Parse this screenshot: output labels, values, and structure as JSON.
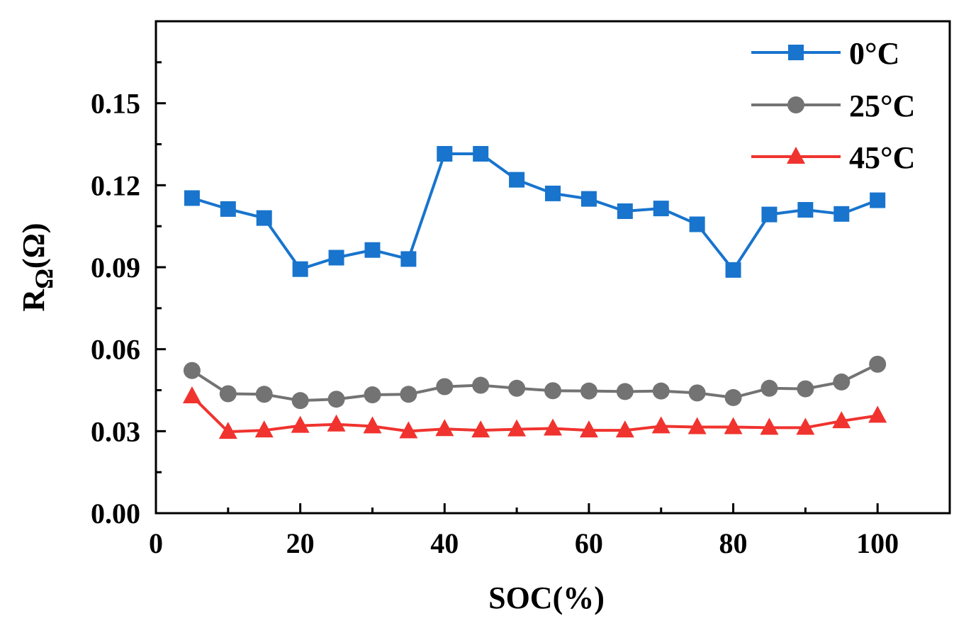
{
  "chart_data": {
    "type": "line",
    "title": "",
    "xlabel": "SOC(%)",
    "ylabel": {
      "main": "R",
      "subscript": "Ω",
      "suffix": "(Ω)"
    },
    "xlim": [
      0,
      110
    ],
    "ylim": [
      0,
      0.18
    ],
    "x_ticks": [
      0,
      20,
      40,
      60,
      80,
      100
    ],
    "x_tick_labels": [
      "0",
      "20",
      "40",
      "60",
      "80",
      "100"
    ],
    "y_ticks": [
      0,
      0.03,
      0.06,
      0.09,
      0.12,
      0.15
    ],
    "y_tick_labels": [
      "0.00",
      "0.03",
      "0.06",
      "0.09",
      "0.12",
      "0.15"
    ],
    "grid": false,
    "legend_position": "top-right",
    "x": [
      5,
      10,
      15,
      20,
      25,
      30,
      35,
      40,
      45,
      50,
      55,
      60,
      65,
      70,
      75,
      80,
      85,
      90,
      95,
      100
    ],
    "series": [
      {
        "name": "0°C",
        "color": "#1874CD",
        "marker": "square",
        "values": [
          0.1153,
          0.1113,
          0.108,
          0.0893,
          0.0935,
          0.0963,
          0.093,
          0.1315,
          0.1315,
          0.122,
          0.117,
          0.115,
          0.1105,
          0.1115,
          0.1057,
          0.089,
          0.1093,
          0.111,
          0.1095,
          0.1145
        ]
      },
      {
        "name": "25°C",
        "color": "#737373",
        "marker": "circle",
        "values": [
          0.0522,
          0.0437,
          0.0435,
          0.0412,
          0.0417,
          0.0433,
          0.0435,
          0.0463,
          0.0468,
          0.0457,
          0.0448,
          0.0447,
          0.0445,
          0.0447,
          0.044,
          0.0423,
          0.0457,
          0.0455,
          0.048,
          0.0545
        ]
      },
      {
        "name": "45°C",
        "color": "#F0332E",
        "marker": "triangle",
        "values": [
          0.0428,
          0.0298,
          0.0303,
          0.032,
          0.0325,
          0.0318,
          0.03,
          0.0308,
          0.0303,
          0.0307,
          0.031,
          0.0303,
          0.0303,
          0.0318,
          0.0315,
          0.0315,
          0.0313,
          0.0313,
          0.0337,
          0.0357
        ]
      }
    ]
  }
}
